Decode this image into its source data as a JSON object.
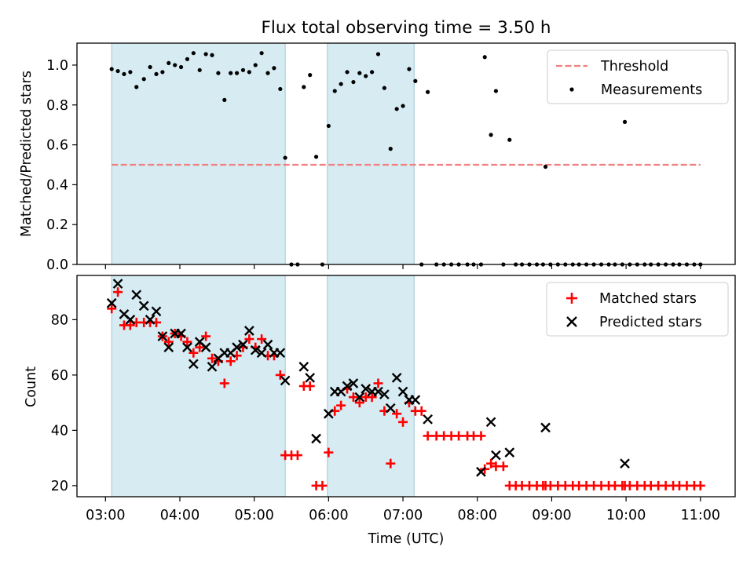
{
  "chart_data": [
    {
      "type": "scatter",
      "title": "Flux total observing time = 3.50 h",
      "xlabel": "",
      "ylabel": "Matched/Predicted stars",
      "ylim": [
        0,
        1.11
      ],
      "yticks": [
        0.0,
        0.2,
        0.4,
        0.6,
        0.8,
        1.0
      ],
      "ytick_labels": [
        "0.0",
        "0.2",
        "0.4",
        "0.6",
        "0.8",
        "1.0"
      ],
      "shaded_intervals": [
        [
          "03:05",
          "05:25"
        ],
        [
          "05:59",
          "07:09"
        ]
      ],
      "threshold": {
        "value": 0.5,
        "x_start": "03:05",
        "x_end": "11:00",
        "color": "#f08080"
      },
      "legend_placement": "upper right",
      "series": [
        {
          "name": "Threshold",
          "kind": "dashed-line",
          "color": "#f08080"
        },
        {
          "name": "Measurements",
          "kind": "points",
          "color": "#000000",
          "points": [
            [
              "03:05",
              0.98
            ],
            [
              "03:10",
              0.97
            ],
            [
              "03:15",
              0.955
            ],
            [
              "03:20",
              0.965
            ],
            [
              "03:25",
              0.89
            ],
            [
              "03:31",
              0.93
            ],
            [
              "03:36",
              0.99
            ],
            [
              "03:41",
              0.955
            ],
            [
              "03:46",
              0.965
            ],
            [
              "03:51",
              1.01
            ],
            [
              "03:56",
              1.0
            ],
            [
              "04:01",
              0.99
            ],
            [
              "04:06",
              1.03
            ],
            [
              "04:11",
              1.06
            ],
            [
              "04:16",
              0.975
            ],
            [
              "04:21",
              1.055
            ],
            [
              "04:26",
              1.05
            ],
            [
              "04:31",
              0.96
            ],
            [
              "04:36",
              0.825
            ],
            [
              "04:41",
              0.96
            ],
            [
              "04:46",
              0.96
            ],
            [
              "04:51",
              0.975
            ],
            [
              "04:56",
              0.965
            ],
            [
              "05:01",
              1.0
            ],
            [
              "05:06",
              1.06
            ],
            [
              "05:11",
              0.96
            ],
            [
              "05:16",
              0.985
            ],
            [
              "05:21",
              0.88
            ],
            [
              "05:25",
              0.535
            ],
            [
              "05:30",
              0.0
            ],
            [
              "05:35",
              0.0
            ],
            [
              "05:40",
              0.89
            ],
            [
              "05:45",
              0.95
            ],
            [
              "05:50",
              0.54
            ],
            [
              "05:55",
              0.0
            ],
            [
              "06:00",
              0.695
            ],
            [
              "06:05",
              0.87
            ],
            [
              "06:10",
              0.905
            ],
            [
              "06:15",
              0.965
            ],
            [
              "06:20",
              0.915
            ],
            [
              "06:25",
              0.96
            ],
            [
              "06:30",
              0.945
            ],
            [
              "06:35",
              0.965
            ],
            [
              "06:40",
              1.055
            ],
            [
              "06:45",
              0.885
            ],
            [
              "06:50",
              0.58
            ],
            [
              "06:55",
              0.78
            ],
            [
              "07:00",
              0.795
            ],
            [
              "07:05",
              0.98
            ],
            [
              "07:10",
              0.92
            ],
            [
              "07:15",
              0.0
            ],
            [
              "07:20",
              0.865
            ],
            [
              "07:27",
              0.0
            ],
            [
              "07:33",
              0.0
            ],
            [
              "07:39",
              0.0
            ],
            [
              "07:45",
              0.0
            ],
            [
              "07:52",
              0.0
            ],
            [
              "07:57",
              0.0
            ],
            [
              "08:03",
              0.0
            ],
            [
              "08:06",
              1.04
            ],
            [
              "08:11",
              0.65
            ],
            [
              "08:15",
              0.87
            ],
            [
              "08:21",
              0.0
            ],
            [
              "08:26",
              0.625
            ],
            [
              "08:31",
              0.0
            ],
            [
              "08:36",
              0.0
            ],
            [
              "08:42",
              0.0
            ],
            [
              "08:48",
              0.0
            ],
            [
              "08:53",
              0.0
            ],
            [
              "08:55",
              0.49
            ],
            [
              "08:59",
              0.0
            ],
            [
              "09:05",
              0.0
            ],
            [
              "09:11",
              0.0
            ],
            [
              "09:17",
              0.0
            ],
            [
              "09:22",
              0.0
            ],
            [
              "09:28",
              0.0
            ],
            [
              "09:34",
              0.0
            ],
            [
              "09:40",
              0.0
            ],
            [
              "09:46",
              0.0
            ],
            [
              "09:51",
              0.0
            ],
            [
              "09:57",
              0.0
            ],
            [
              "09:59",
              0.715
            ],
            [
              "10:03",
              0.0
            ],
            [
              "10:09",
              0.0
            ],
            [
              "10:15",
              0.0
            ],
            [
              "10:20",
              0.0
            ],
            [
              "10:26",
              0.0
            ],
            [
              "10:32",
              0.0
            ],
            [
              "10:38",
              0.0
            ],
            [
              "10:43",
              0.0
            ],
            [
              "10:49",
              0.0
            ],
            [
              "10:55",
              0.0
            ],
            [
              "11:00",
              0.0
            ]
          ]
        }
      ]
    },
    {
      "type": "scatter",
      "title": "",
      "xlabel": "Time (UTC)",
      "ylabel": "Count",
      "ylim": [
        16,
        96
      ],
      "yticks": [
        20,
        40,
        60,
        80
      ],
      "ytick_labels": [
        "20",
        "40",
        "60",
        "80"
      ],
      "xlim": [
        "02:37",
        "11:28"
      ],
      "xticks": [
        "03:00",
        "04:00",
        "05:00",
        "06:00",
        "07:00",
        "08:00",
        "09:00",
        "10:00",
        "11:00"
      ],
      "xtick_labels": [
        "03:00",
        "04:00",
        "05:00",
        "06:00",
        "07:00",
        "08:00",
        "09:00",
        "10:00",
        "11:00"
      ],
      "shaded_intervals": [
        [
          "03:05",
          "05:25"
        ],
        [
          "05:59",
          "07:09"
        ]
      ],
      "legend_placement": "upper right",
      "series": [
        {
          "name": "Matched stars",
          "marker": "plus",
          "color": "#ff0000",
          "points": [
            [
              "03:05",
              84
            ],
            [
              "03:10",
              90
            ],
            [
              "03:15",
              78
            ],
            [
              "03:20",
              78
            ],
            [
              "03:25",
              79
            ],
            [
              "03:31",
              79
            ],
            [
              "03:36",
              79
            ],
            [
              "03:41",
              79
            ],
            [
              "03:46",
              74
            ],
            [
              "03:51",
              72
            ],
            [
              "03:56",
              75
            ],
            [
              "04:01",
              74
            ],
            [
              "04:06",
              72
            ],
            [
              "04:11",
              68
            ],
            [
              "04:16",
              70
            ],
            [
              "04:21",
              74
            ],
            [
              "04:26",
              66
            ],
            [
              "04:31",
              65
            ],
            [
              "04:36",
              57
            ],
            [
              "04:41",
              65
            ],
            [
              "04:46",
              67
            ],
            [
              "04:51",
              70
            ],
            [
              "04:56",
              73
            ],
            [
              "05:01",
              70
            ],
            [
              "05:06",
              73
            ],
            [
              "05:11",
              67
            ],
            [
              "05:16",
              67
            ],
            [
              "05:21",
              60
            ],
            [
              "05:25",
              31
            ],
            [
              "05:30",
              31
            ],
            [
              "05:35",
              31
            ],
            [
              "05:40",
              56
            ],
            [
              "05:45",
              56
            ],
            [
              "05:50",
              20
            ],
            [
              "05:55",
              20
            ],
            [
              "06:00",
              32
            ],
            [
              "06:05",
              47
            ],
            [
              "06:10",
              49
            ],
            [
              "06:15",
              55
            ],
            [
              "06:20",
              52
            ],
            [
              "06:25",
              50
            ],
            [
              "06:30",
              52
            ],
            [
              "06:35",
              52
            ],
            [
              "06:40",
              57
            ],
            [
              "06:45",
              47
            ],
            [
              "06:50",
              28
            ],
            [
              "06:55",
              46
            ],
            [
              "07:00",
              43
            ],
            [
              "07:05",
              50
            ],
            [
              "07:10",
              47
            ],
            [
              "07:15",
              47
            ],
            [
              "07:20",
              38
            ],
            [
              "07:27",
              38
            ],
            [
              "07:33",
              38
            ],
            [
              "07:39",
              38
            ],
            [
              "07:45",
              38
            ],
            [
              "07:52",
              38
            ],
            [
              "07:57",
              38
            ],
            [
              "08:03",
              38
            ],
            [
              "08:06",
              26
            ],
            [
              "08:11",
              28
            ],
            [
              "08:15",
              27
            ],
            [
              "08:21",
              27
            ],
            [
              "08:26",
              20
            ],
            [
              "08:31",
              20
            ],
            [
              "08:36",
              20
            ],
            [
              "08:42",
              20
            ],
            [
              "08:48",
              20
            ],
            [
              "08:53",
              20
            ],
            [
              "08:55",
              20
            ],
            [
              "08:59",
              20
            ],
            [
              "09:05",
              20
            ],
            [
              "09:11",
              20
            ],
            [
              "09:17",
              20
            ],
            [
              "09:22",
              20
            ],
            [
              "09:28",
              20
            ],
            [
              "09:34",
              20
            ],
            [
              "09:40",
              20
            ],
            [
              "09:46",
              20
            ],
            [
              "09:51",
              20
            ],
            [
              "09:57",
              20
            ],
            [
              "09:59",
              20
            ],
            [
              "10:03",
              20
            ],
            [
              "10:09",
              20
            ],
            [
              "10:15",
              20
            ],
            [
              "10:20",
              20
            ],
            [
              "10:26",
              20
            ],
            [
              "10:32",
              20
            ],
            [
              "10:38",
              20
            ],
            [
              "10:43",
              20
            ],
            [
              "10:49",
              20
            ],
            [
              "10:55",
              20
            ],
            [
              "11:00",
              20
            ]
          ]
        },
        {
          "name": "Predicted stars",
          "marker": "x",
          "color": "#000000",
          "points": [
            [
              "03:05",
              86
            ],
            [
              "03:10",
              93
            ],
            [
              "03:15",
              82
            ],
            [
              "03:20",
              80
            ],
            [
              "03:25",
              89
            ],
            [
              "03:31",
              85
            ],
            [
              "03:36",
              80
            ],
            [
              "03:41",
              83
            ],
            [
              "03:46",
              74
            ],
            [
              "03:51",
              70
            ],
            [
              "03:56",
              75
            ],
            [
              "04:01",
              75
            ],
            [
              "04:06",
              70
            ],
            [
              "04:11",
              64
            ],
            [
              "04:16",
              72
            ],
            [
              "04:21",
              70
            ],
            [
              "04:26",
              63
            ],
            [
              "04:31",
              66
            ],
            [
              "04:36",
              68
            ],
            [
              "04:41",
              68
            ],
            [
              "04:46",
              70
            ],
            [
              "04:51",
              71
            ],
            [
              "04:56",
              76
            ],
            [
              "05:01",
              69
            ],
            [
              "05:06",
              68
            ],
            [
              "05:11",
              71
            ],
            [
              "05:16",
              68
            ],
            [
              "05:21",
              68
            ],
            [
              "05:25",
              58
            ],
            [
              "05:40",
              63
            ],
            [
              "05:45",
              59
            ],
            [
              "05:50",
              37
            ],
            [
              "06:00",
              46
            ],
            [
              "06:05",
              54
            ],
            [
              "06:10",
              54
            ],
            [
              "06:15",
              56
            ],
            [
              "06:20",
              57
            ],
            [
              "06:25",
              52
            ],
            [
              "06:30",
              55
            ],
            [
              "06:35",
              54
            ],
            [
              "06:40",
              54
            ],
            [
              "06:45",
              53
            ],
            [
              "06:50",
              48
            ],
            [
              "06:55",
              59
            ],
            [
              "07:00",
              54
            ],
            [
              "07:05",
              51
            ],
            [
              "07:10",
              51
            ],
            [
              "07:20",
              44
            ],
            [
              "08:03",
              25
            ],
            [
              "08:11",
              43
            ],
            [
              "08:15",
              31
            ],
            [
              "08:26",
              32
            ],
            [
              "08:55",
              41
            ],
            [
              "09:59",
              28
            ]
          ]
        }
      ]
    }
  ]
}
